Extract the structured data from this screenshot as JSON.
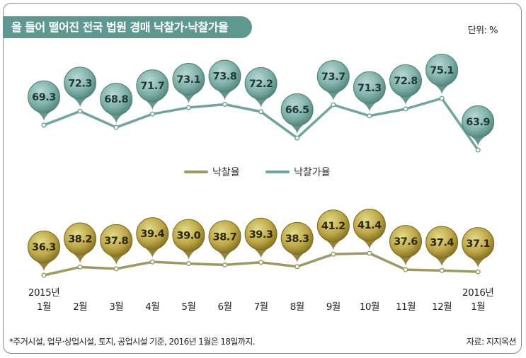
{
  "title": "올 들어 떨어진 전국 법원 경매 낙찰가·낙찰가율",
  "unit_label": "단위: %",
  "footnote": "*주거시설, 업무·상업시설, 토지, 공업시설 기준, 2016년 1월은 18일까지.",
  "source": "자료: 지지옥션",
  "colors": {
    "teal": "#6fa59d",
    "teal_dark": "#3f7a72",
    "olive": "#9c9a64",
    "olive_dark": "#6f6b2e",
    "banner": "#5f9890"
  },
  "chart_data": {
    "type": "line",
    "categories": [
      "2015년 1월",
      "2월",
      "3월",
      "4월",
      "5월",
      "6월",
      "7월",
      "8월",
      "9월",
      "10월",
      "11월",
      "12월",
      "2016년 1월"
    ],
    "series": [
      {
        "name": "낙찰가율",
        "values": [
          69.3,
          72.3,
          68.8,
          71.7,
          73.1,
          73.8,
          72.2,
          66.5,
          73.7,
          71.3,
          72.8,
          75.1,
          63.9
        ]
      },
      {
        "name": "낙찰율",
        "values": [
          36.3,
          38.2,
          37.8,
          39.4,
          39.0,
          38.7,
          39.3,
          38.3,
          41.2,
          41.4,
          37.6,
          37.4,
          37.1
        ]
      }
    ],
    "legend": "center",
    "grid": false
  },
  "axis_labels": [
    {
      "top": "2015년",
      "bottom": "1월"
    },
    {
      "top": "",
      "bottom": "2월"
    },
    {
      "top": "",
      "bottom": "3월"
    },
    {
      "top": "",
      "bottom": "4월"
    },
    {
      "top": "",
      "bottom": "5월"
    },
    {
      "top": "",
      "bottom": "6월"
    },
    {
      "top": "",
      "bottom": "7월"
    },
    {
      "top": "",
      "bottom": "8월"
    },
    {
      "top": "",
      "bottom": "9월"
    },
    {
      "top": "",
      "bottom": "10월"
    },
    {
      "top": "",
      "bottom": "11월"
    },
    {
      "top": "",
      "bottom": "12월"
    },
    {
      "top": "2016년",
      "bottom": "1월"
    }
  ]
}
